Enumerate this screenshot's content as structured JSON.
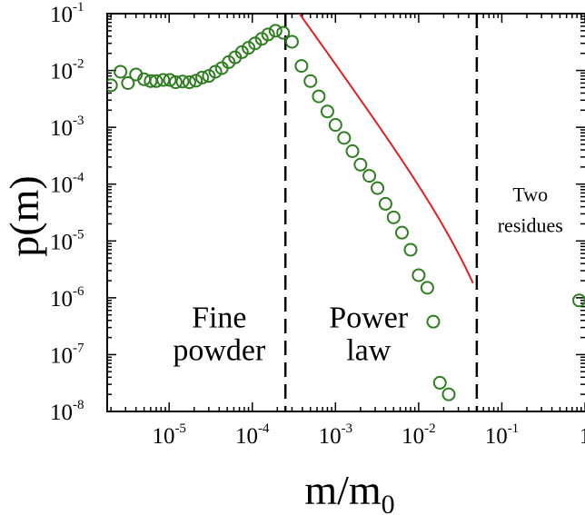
{
  "chart_data": {
    "type": "scatter",
    "xlabel": {
      "base": "m/m",
      "sub": "0"
    },
    "ylabel": "p(m)",
    "xscale": "log",
    "yscale": "log",
    "xlim": [
      1.8e-06,
      1.0
    ],
    "ylim": [
      1e-08,
      0.1
    ],
    "x_ticks": [
      {
        "base": "10",
        "exp": "-5",
        "value": 1e-05
      },
      {
        "base": "10",
        "exp": "-4",
        "value": 0.0001
      },
      {
        "base": "10",
        "exp": "-3",
        "value": 0.001
      },
      {
        "base": "10",
        "exp": "-2",
        "value": 0.01
      },
      {
        "base": "10",
        "exp": "-1",
        "value": 0.1
      },
      {
        "base": "1",
        "exp": "",
        "value": 1.0
      }
    ],
    "y_ticks": [
      {
        "base": "10",
        "exp": "-1",
        "value": 0.1
      },
      {
        "base": "10",
        "exp": "-2",
        "value": 0.01
      },
      {
        "base": "10",
        "exp": "-3",
        "value": 0.001
      },
      {
        "base": "10",
        "exp": "-4",
        "value": 0.0001
      },
      {
        "base": "10",
        "exp": "-5",
        "value": 1e-05
      },
      {
        "base": "10",
        "exp": "-6",
        "value": 1e-06
      },
      {
        "base": "10",
        "exp": "-7",
        "value": 1e-07
      },
      {
        "base": "10",
        "exp": "-8",
        "value": 1e-08
      }
    ],
    "vlines": [
      0.00025,
      0.05
    ],
    "annotations": [
      {
        "lines": [
          "Fine",
          "powder"
        ],
        "x": 4e-05,
        "y": 3e-07,
        "size": "big"
      },
      {
        "lines": [
          "Power",
          "law"
        ],
        "x": 0.0025,
        "y": 3e-07,
        "size": "big"
      },
      {
        "lines": [
          "Two",
          "residues"
        ],
        "x": 0.22,
        "y": 5e-05,
        "size": "small"
      }
    ],
    "series": [
      {
        "marker": "open-circle",
        "color": "#2e7d1f",
        "points": [
          [
            2e-06,
            0.0055
          ],
          [
            2.6e-06,
            0.0095
          ],
          [
            3.2e-06,
            0.006
          ],
          [
            4e-06,
            0.0085
          ],
          [
            5e-06,
            0.007
          ],
          [
            6e-06,
            0.0065
          ],
          [
            7e-06,
            0.0065
          ],
          [
            8.5e-06,
            0.0068
          ],
          [
            1.02e-05,
            0.0068
          ],
          [
            1.2e-05,
            0.0062
          ],
          [
            1.45e-05,
            0.0064
          ],
          [
            1.75e-05,
            0.0062
          ],
          [
            2.1e-05,
            0.0066
          ],
          [
            2.5e-05,
            0.0075
          ],
          [
            3e-05,
            0.008
          ],
          [
            3.6e-05,
            0.0095
          ],
          [
            4.3e-05,
            0.011
          ],
          [
            5.2e-05,
            0.014
          ],
          [
            6.2e-05,
            0.017
          ],
          [
            7.5e-05,
            0.021
          ],
          [
            9e-05,
            0.025
          ],
          [
            0.000108,
            0.03
          ],
          [
            0.00013,
            0.036
          ],
          [
            0.000155,
            0.043
          ],
          [
            0.00019,
            0.05
          ],
          [
            0.000235,
            0.046
          ],
          [
            0.0003,
            0.032
          ],
          [
            0.00039,
            0.012
          ],
          [
            0.0005,
            0.0065
          ],
          [
            0.00063,
            0.0035
          ],
          [
            0.0008,
            0.0019
          ],
          [
            0.001,
            0.0011
          ],
          [
            0.00127,
            0.00065
          ],
          [
            0.0016,
            0.00038
          ],
          [
            0.002,
            0.00022
          ],
          [
            0.00255,
            0.00014
          ],
          [
            0.0032,
            8.5e-05
          ],
          [
            0.004,
            4.5e-05
          ],
          [
            0.005,
            2.6e-05
          ],
          [
            0.0063,
            1.4e-05
          ],
          [
            0.008,
            7e-06
          ],
          [
            0.01,
            2.5e-06
          ],
          [
            0.0127,
            1.5e-06
          ],
          [
            0.015,
            3.8e-07
          ],
          [
            0.018,
            3.2e-08
          ],
          [
            0.023,
            2e-08
          ],
          [
            0.85,
            9e-07
          ]
        ]
      },
      {
        "marker": "line",
        "color": "#e02020",
        "fit": {
          "a": 1e-08,
          "b": -2.04,
          "m_cut": 0.04
        }
      }
    ]
  }
}
